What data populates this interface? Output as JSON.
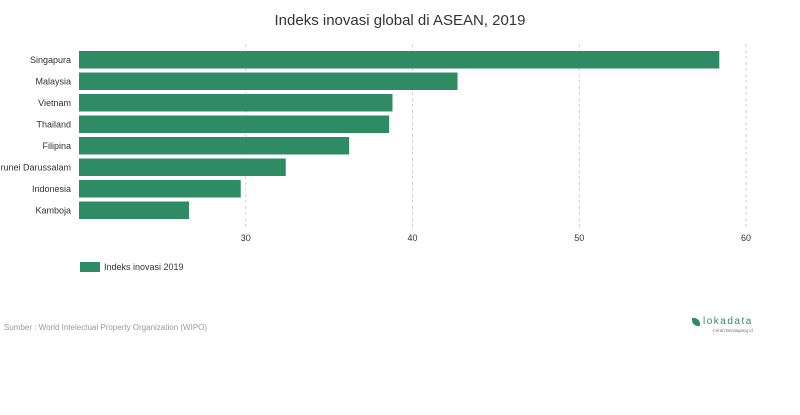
{
  "chart_data": {
    "type": "bar",
    "orientation": "horizontal",
    "title": "Indeks inovasi global di ASEAN, 2019",
    "categories": [
      "Singapura",
      "Malaysia",
      "Vietnam",
      "Thailand",
      "Filipina",
      "Brunei Darussalam",
      "Indonesia",
      "Kamboja"
    ],
    "series": [
      {
        "name": "Indeks inovasi 2019",
        "values": [
          58.4,
          42.7,
          38.8,
          38.6,
          36.2,
          32.4,
          29.7,
          26.6
        ]
      }
    ],
    "xlim": [
      20,
      60
    ],
    "xticks": [
      30,
      40,
      50,
      60
    ],
    "grid": true,
    "legend_position": "bottom-left",
    "bar_color": "#2e8b64"
  },
  "footer": {
    "source": "Sumber : World Intelectual Property Organization (WIPO)",
    "brand_name": "lokadata",
    "brand_tagline": "Cerah Berdagang id",
    "brand_color": "#2e8b64"
  }
}
